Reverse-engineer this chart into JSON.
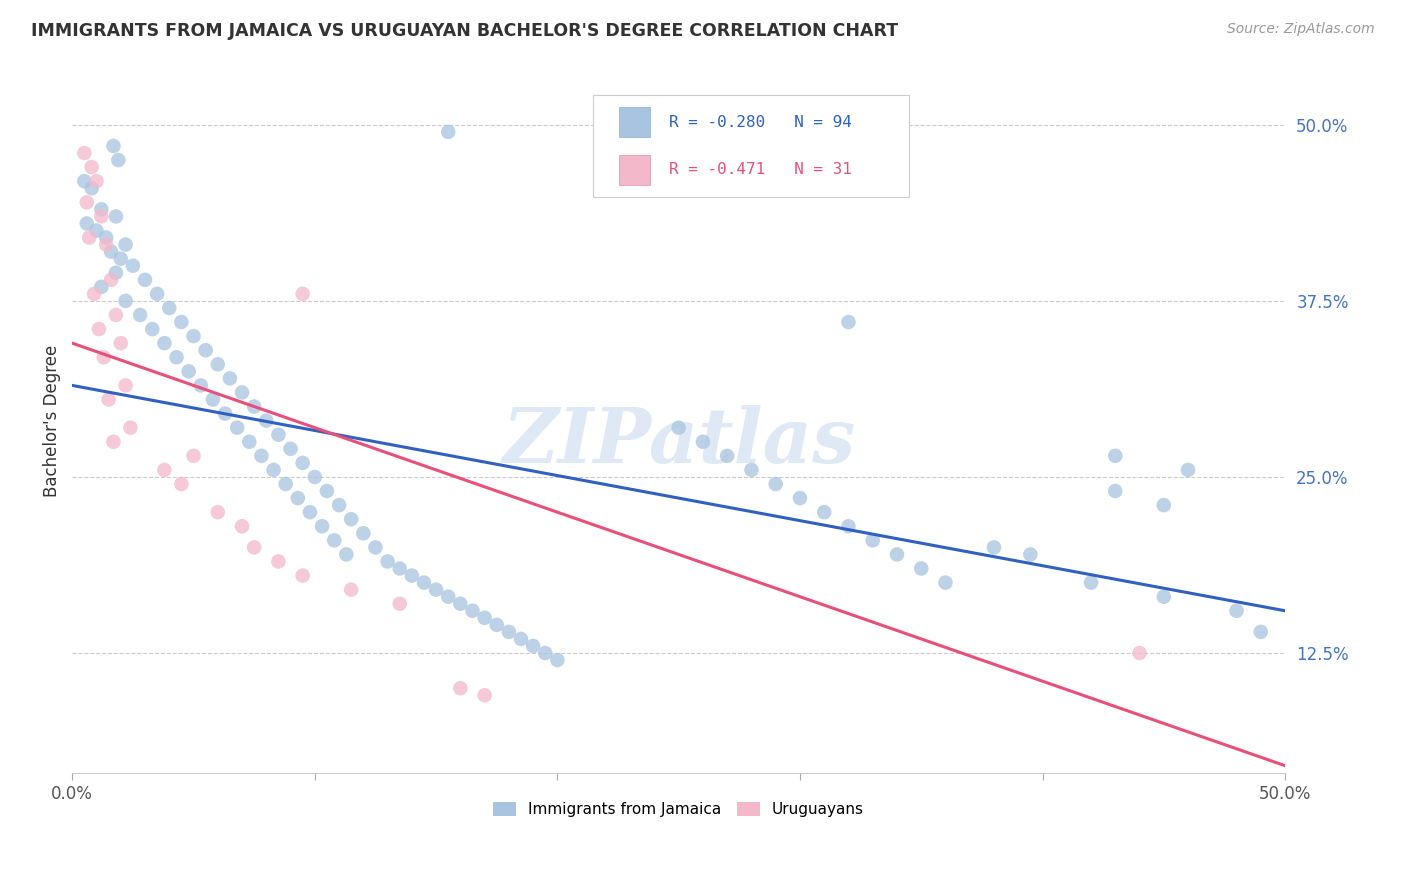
{
  "title": "IMMIGRANTS FROM JAMAICA VS URUGUAYAN BACHELOR'S DEGREE CORRELATION CHART",
  "source": "Source: ZipAtlas.com",
  "ylabel": "Bachelor's Degree",
  "xlim": [
    0.0,
    0.5
  ],
  "ylim": [
    0.04,
    0.54
  ],
  "ytick_vals": [
    0.125,
    0.25,
    0.375,
    0.5
  ],
  "xtick_vals": [
    0.0,
    0.1,
    0.2,
    0.3,
    0.4,
    0.5
  ],
  "blue_color": "#a8c4e0",
  "pink_color": "#f4b8cb",
  "blue_line_color": "#3060c0",
  "pink_line_color": "#e8507a",
  "watermark": "ZIPatlas",
  "blue_line_x0": 0.0,
  "blue_line_y0": 0.315,
  "blue_line_x1": 0.5,
  "blue_line_y1": 0.155,
  "pink_line_x0": 0.0,
  "pink_line_y0": 0.345,
  "pink_line_x1": 0.5,
  "pink_line_y1": 0.045,
  "blue_pts": [
    [
      0.017,
      0.485
    ],
    [
      0.019,
      0.475
    ],
    [
      0.005,
      0.46
    ],
    [
      0.008,
      0.455
    ],
    [
      0.012,
      0.44
    ],
    [
      0.018,
      0.435
    ],
    [
      0.006,
      0.43
    ],
    [
      0.01,
      0.425
    ],
    [
      0.014,
      0.42
    ],
    [
      0.022,
      0.415
    ],
    [
      0.016,
      0.41
    ],
    [
      0.02,
      0.405
    ],
    [
      0.025,
      0.4
    ],
    [
      0.018,
      0.395
    ],
    [
      0.03,
      0.39
    ],
    [
      0.012,
      0.385
    ],
    [
      0.035,
      0.38
    ],
    [
      0.022,
      0.375
    ],
    [
      0.04,
      0.37
    ],
    [
      0.028,
      0.365
    ],
    [
      0.045,
      0.36
    ],
    [
      0.033,
      0.355
    ],
    [
      0.05,
      0.35
    ],
    [
      0.038,
      0.345
    ],
    [
      0.055,
      0.34
    ],
    [
      0.043,
      0.335
    ],
    [
      0.06,
      0.33
    ],
    [
      0.048,
      0.325
    ],
    [
      0.065,
      0.32
    ],
    [
      0.053,
      0.315
    ],
    [
      0.07,
      0.31
    ],
    [
      0.058,
      0.305
    ],
    [
      0.075,
      0.3
    ],
    [
      0.063,
      0.295
    ],
    [
      0.08,
      0.29
    ],
    [
      0.068,
      0.285
    ],
    [
      0.085,
      0.28
    ],
    [
      0.073,
      0.275
    ],
    [
      0.09,
      0.27
    ],
    [
      0.078,
      0.265
    ],
    [
      0.095,
      0.26
    ],
    [
      0.083,
      0.255
    ],
    [
      0.1,
      0.25
    ],
    [
      0.088,
      0.245
    ],
    [
      0.105,
      0.24
    ],
    [
      0.093,
      0.235
    ],
    [
      0.11,
      0.23
    ],
    [
      0.098,
      0.225
    ],
    [
      0.115,
      0.22
    ],
    [
      0.103,
      0.215
    ],
    [
      0.12,
      0.21
    ],
    [
      0.108,
      0.205
    ],
    [
      0.125,
      0.2
    ],
    [
      0.113,
      0.195
    ],
    [
      0.13,
      0.19
    ],
    [
      0.135,
      0.185
    ],
    [
      0.14,
      0.18
    ],
    [
      0.145,
      0.175
    ],
    [
      0.15,
      0.17
    ],
    [
      0.155,
      0.165
    ],
    [
      0.16,
      0.16
    ],
    [
      0.165,
      0.155
    ],
    [
      0.17,
      0.15
    ],
    [
      0.175,
      0.145
    ],
    [
      0.18,
      0.14
    ],
    [
      0.185,
      0.135
    ],
    [
      0.19,
      0.13
    ],
    [
      0.195,
      0.125
    ],
    [
      0.2,
      0.12
    ],
    [
      0.25,
      0.285
    ],
    [
      0.26,
      0.275
    ],
    [
      0.27,
      0.265
    ],
    [
      0.28,
      0.255
    ],
    [
      0.29,
      0.245
    ],
    [
      0.3,
      0.235
    ],
    [
      0.31,
      0.225
    ],
    [
      0.32,
      0.215
    ],
    [
      0.33,
      0.205
    ],
    [
      0.34,
      0.195
    ],
    [
      0.35,
      0.185
    ],
    [
      0.36,
      0.175
    ],
    [
      0.155,
      0.495
    ],
    [
      0.32,
      0.36
    ],
    [
      0.43,
      0.24
    ],
    [
      0.45,
      0.23
    ],
    [
      0.43,
      0.265
    ],
    [
      0.46,
      0.255
    ],
    [
      0.38,
      0.2
    ],
    [
      0.395,
      0.195
    ],
    [
      0.42,
      0.175
    ],
    [
      0.45,
      0.165
    ],
    [
      0.48,
      0.155
    ],
    [
      0.49,
      0.14
    ]
  ],
  "pink_pts": [
    [
      0.005,
      0.48
    ],
    [
      0.008,
      0.47
    ],
    [
      0.01,
      0.46
    ],
    [
      0.006,
      0.445
    ],
    [
      0.012,
      0.435
    ],
    [
      0.014,
      0.415
    ],
    [
      0.007,
      0.42
    ],
    [
      0.016,
      0.39
    ],
    [
      0.009,
      0.38
    ],
    [
      0.018,
      0.365
    ],
    [
      0.011,
      0.355
    ],
    [
      0.02,
      0.345
    ],
    [
      0.013,
      0.335
    ],
    [
      0.022,
      0.315
    ],
    [
      0.015,
      0.305
    ],
    [
      0.024,
      0.285
    ],
    [
      0.017,
      0.275
    ],
    [
      0.05,
      0.265
    ],
    [
      0.095,
      0.38
    ],
    [
      0.038,
      0.255
    ],
    [
      0.045,
      0.245
    ],
    [
      0.06,
      0.225
    ],
    [
      0.07,
      0.215
    ],
    [
      0.075,
      0.2
    ],
    [
      0.085,
      0.19
    ],
    [
      0.095,
      0.18
    ],
    [
      0.115,
      0.17
    ],
    [
      0.135,
      0.16
    ],
    [
      0.16,
      0.1
    ],
    [
      0.17,
      0.095
    ],
    [
      0.44,
      0.125
    ]
  ]
}
